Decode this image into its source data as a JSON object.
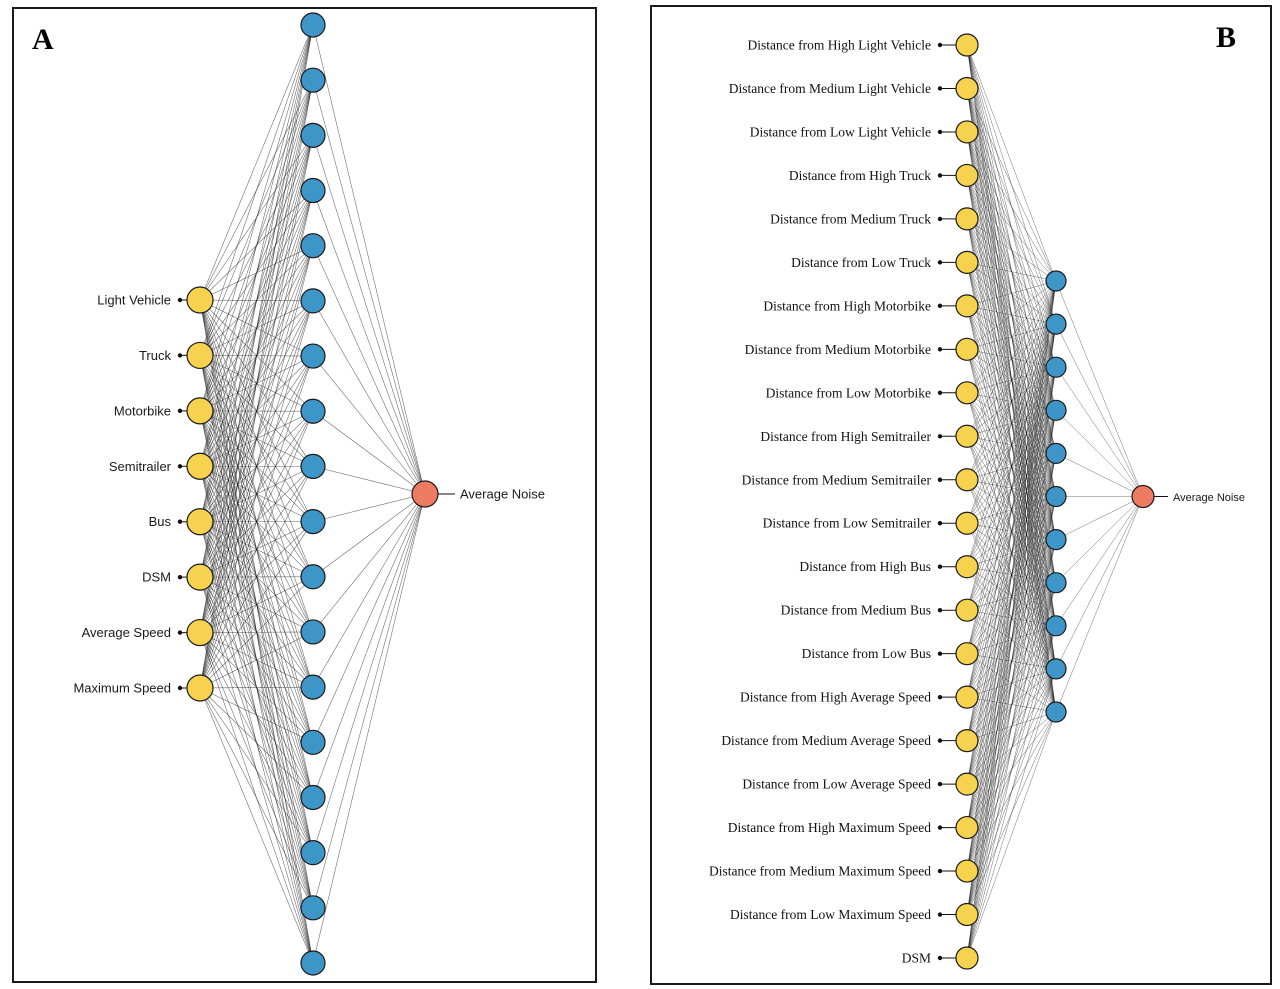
{
  "figure": {
    "type": "neural-network-architecture",
    "colors": {
      "input_node": "#F7D24E",
      "hidden_node": "#3D96C7",
      "output_node": "#ED7B62",
      "node_stroke": "#1a1a1a",
      "connection": "#111111",
      "panel_border": "#1a1a1a"
    },
    "panels": [
      {
        "label": "A",
        "inputs": [
          "Light Vehicle",
          "Truck",
          "Motorbike",
          "Semitrailer",
          "Bus",
          "DSM",
          "Average Speed",
          "Maximum Speed"
        ],
        "hidden_count": 18,
        "output_label": "Average Noise"
      },
      {
        "label": "B",
        "inputs": [
          "Distance from High Light Vehicle",
          "Distance from Medium Light Vehicle",
          "Distance from Low Light Vehicle",
          "Distance from High Truck",
          "Distance from Medium Truck",
          "Distance from Low Truck",
          "Distance from High Motorbike",
          "Distance from Medium Motorbike",
          "Distance from Low Motorbike",
          "Distance from High Semitrailer",
          "Distance from Medium Semitrailer",
          "Distance from Low Semitrailer",
          "Distance from High Bus",
          "Distance from Medium Bus",
          "Distance from Low Bus",
          "Distance from High Average Speed",
          "Distance from Medium Average Speed",
          "Distance from Low Average Speed",
          "Distance from High Maximum Speed",
          "Distance from Medium Maximum Speed",
          "Distance from Low Maximum Speed",
          "DSM"
        ],
        "hidden_count": 11,
        "output_label": "Average Noise"
      }
    ]
  }
}
